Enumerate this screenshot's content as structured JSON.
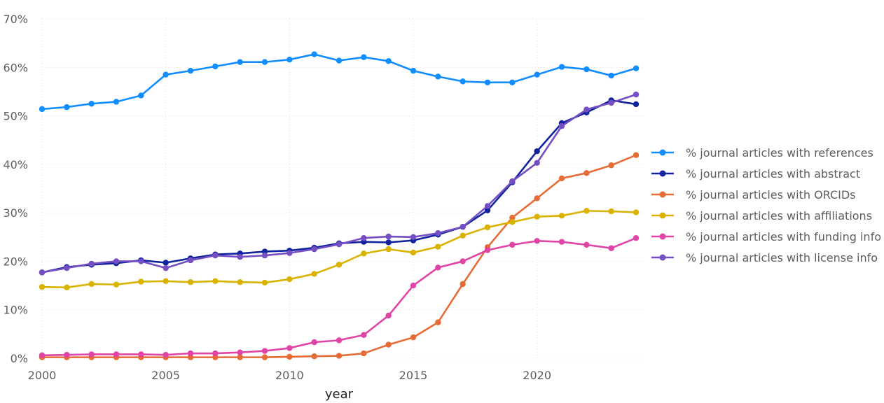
{
  "chart_data": {
    "type": "line",
    "title": "",
    "xlabel": "year",
    "ylabel": "",
    "x": [
      2000,
      2001,
      2002,
      2003,
      2004,
      2005,
      2006,
      2007,
      2008,
      2009,
      2010,
      2011,
      2012,
      2013,
      2014,
      2015,
      2016,
      2017,
      2018,
      2019,
      2020,
      2021,
      2022,
      2023,
      2024
    ],
    "xticks": [
      2000,
      2005,
      2010,
      2015,
      2020
    ],
    "xtick_labels": [
      "2000",
      "2005",
      "2010",
      "2015",
      "2020"
    ],
    "yticks": [
      0,
      10,
      20,
      30,
      40,
      50,
      60,
      70
    ],
    "ytick_labels": [
      "0%",
      "10%",
      "20%",
      "30%",
      "40%",
      "50%",
      "60%",
      "70%"
    ],
    "xlim": [
      2000,
      2024
    ],
    "ylim": [
      0,
      70
    ],
    "grid": true,
    "legend_position": "right",
    "series": [
      {
        "name": "% journal articles with references",
        "color": "#118DFF",
        "values": [
          51.4,
          51.8,
          52.5,
          52.9,
          54.2,
          58.5,
          59.3,
          60.2,
          61.1,
          61.1,
          61.6,
          62.7,
          61.4,
          62.1,
          61.3,
          59.3,
          58.1,
          57.1,
          56.9,
          56.9,
          58.5,
          60.1,
          59.6,
          58.3,
          59.8
        ]
      },
      {
        "name": "% journal articles with abstract",
        "color": "#12239E",
        "values": [
          17.7,
          18.8,
          19.3,
          19.6,
          20.2,
          19.7,
          20.6,
          21.4,
          21.6,
          22.0,
          22.2,
          22.8,
          23.7,
          24.0,
          23.9,
          24.3,
          25.5,
          27.1,
          30.5,
          36.3,
          42.7,
          48.5,
          50.7,
          53.2,
          52.4
        ]
      },
      {
        "name": "% journal articles with ORCIDs",
        "color": "#E66C37",
        "values": [
          0.2,
          0.2,
          0.2,
          0.2,
          0.2,
          0.2,
          0.2,
          0.2,
          0.2,
          0.2,
          0.3,
          0.4,
          0.5,
          1.0,
          2.8,
          4.3,
          7.4,
          15.3,
          22.9,
          29.0,
          33.0,
          37.1,
          38.2,
          39.8,
          41.9
        ]
      },
      {
        "name": "% journal articles with affiliations",
        "color": "#D9B300",
        "values": [
          14.7,
          14.6,
          15.3,
          15.2,
          15.8,
          15.9,
          15.7,
          15.9,
          15.7,
          15.6,
          16.3,
          17.4,
          19.3,
          21.6,
          22.5,
          21.8,
          23.0,
          25.3,
          27.0,
          28.1,
          29.2,
          29.4,
          30.4,
          30.3,
          30.1
        ]
      },
      {
        "name": "% journal articles with funding info",
        "color": "#E044A7",
        "values": [
          0.6,
          0.7,
          0.8,
          0.8,
          0.8,
          0.7,
          1.0,
          1.0,
          1.2,
          1.5,
          2.1,
          3.3,
          3.7,
          4.8,
          8.8,
          15.0,
          18.7,
          20.0,
          22.3,
          23.4,
          24.2,
          24.0,
          23.4,
          22.7,
          24.8
        ]
      },
      {
        "name": "% journal articles with license info",
        "color": "#744EC2",
        "values": [
          17.7,
          18.6,
          19.5,
          20.0,
          20.0,
          18.6,
          20.2,
          21.2,
          20.9,
          21.2,
          21.7,
          22.5,
          23.5,
          24.8,
          25.1,
          25.0,
          25.8,
          27.1,
          31.4,
          36.5,
          40.3,
          47.9,
          51.3,
          52.7,
          54.4
        ]
      }
    ]
  }
}
